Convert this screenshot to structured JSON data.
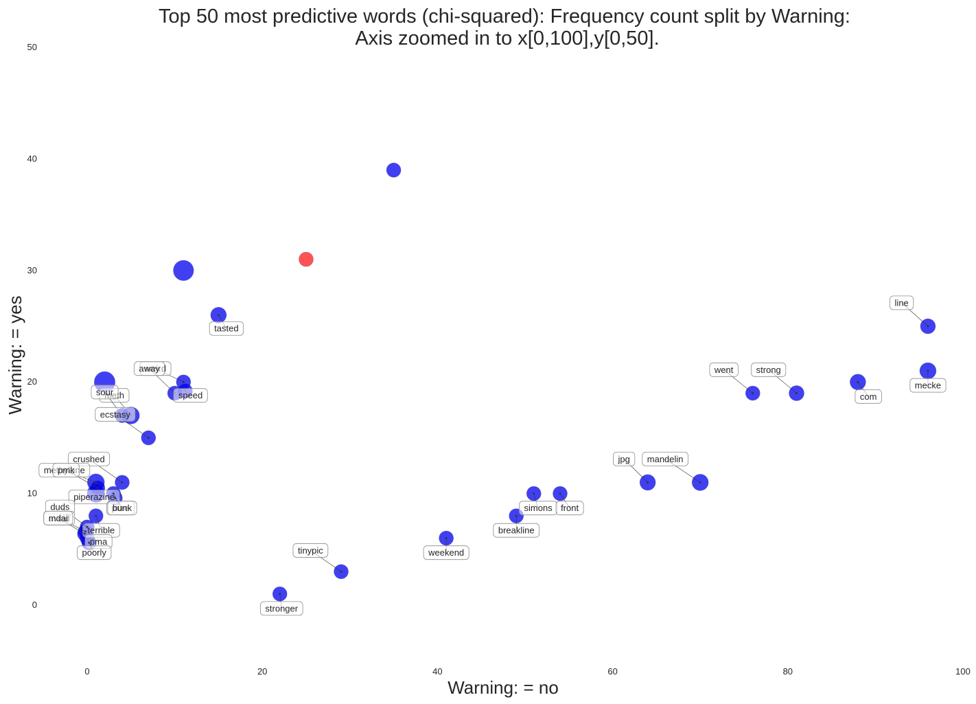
{
  "chart_data": {
    "type": "scatter",
    "title": "Top 50 most predictive words (chi-squared): Frequency count split by Warning:",
    "subtitle": "Axis zoomed in to x[0,100],y[0,50].",
    "xlabel": "Warning: = no",
    "ylabel": "Warning: = yes",
    "xlim": [
      -5,
      100
    ],
    "ylim": [
      -5,
      50
    ],
    "x_ticks": [
      0,
      20,
      40,
      60,
      80,
      100
    ],
    "y_ticks": [
      0,
      10,
      20,
      30,
      40,
      50
    ],
    "grid": false,
    "legend": "none",
    "colors": {
      "primary": "#0000ee",
      "highlight": "#ff1a1a"
    },
    "points": [
      {
        "x": 35,
        "y": 39,
        "size": 1.0,
        "color": "blue"
      },
      {
        "x": 25,
        "y": 31,
        "size": 1.0,
        "color": "red"
      },
      {
        "x": 11,
        "y": 30,
        "size": 2.0,
        "color": "blue"
      },
      {
        "x": 15,
        "y": 26,
        "size": 1.2,
        "color": "blue",
        "label": "tasted",
        "label_x": 15.9,
        "label_y": 24.8
      },
      {
        "x": 2,
        "y": 20,
        "size": 2.1,
        "color": "blue"
      },
      {
        "x": 11,
        "y": 20,
        "size": 1.0,
        "color": "blue",
        "label": "weird",
        "label_x": 7.8,
        "label_y": 21.2
      },
      {
        "x": 10,
        "y": 19,
        "size": 1.0,
        "color": "blue",
        "label": "away",
        "label_x": 7.1,
        "label_y": 21.2
      },
      {
        "x": 11.2,
        "y": 19.2,
        "size": 1.0,
        "color": "blue",
        "label": "speed",
        "label_x": 11.8,
        "label_y": 18.8
      },
      {
        "x": 5,
        "y": 17,
        "size": 1.4,
        "color": "blue",
        "label": "meth",
        "label_x": 3.1,
        "label_y": 18.8
      },
      {
        "x": 4,
        "y": 17,
        "size": 1.0,
        "color": "blue",
        "label": "sour",
        "label_x": 2.0,
        "label_y": 19.1
      },
      {
        "x": 7,
        "y": 15,
        "size": 1.0,
        "color": "blue",
        "label": "ecstasy",
        "label_x": 3.2,
        "label_y": 17.1
      },
      {
        "x": 4,
        "y": 11,
        "size": 1.0,
        "color": "blue",
        "label": "crushed",
        "label_x": 0.2,
        "label_y": 13.1
      },
      {
        "x": 1,
        "y": 11,
        "size": 1.4,
        "color": "blue",
        "label": "methylone",
        "label_x": -2.6,
        "label_y": 12.1
      },
      {
        "x": 1.2,
        "y": 10.5,
        "size": 1.0,
        "color": "blue",
        "label": "pmk",
        "label_x": -2.4,
        "label_y": 12.1
      },
      {
        "x": 1,
        "y": 10,
        "size": 1.5,
        "color": "blue",
        "label": "piperazine",
        "label_x": 0.8,
        "label_y": 9.7
      },
      {
        "x": 3,
        "y": 10,
        "size": 1.0,
        "color": "blue",
        "label": "pure",
        "label_x": 3.8,
        "label_y": 8.7
      },
      {
        "x": 3.2,
        "y": 9.6,
        "size": 1.0,
        "color": "blue",
        "label": "bunk",
        "label_x": 4.0,
        "label_y": 8.7
      },
      {
        "x": 1,
        "y": 8,
        "size": 1.0,
        "color": "blue",
        "label": "terrible",
        "label_x": 1.6,
        "label_y": 6.7
      },
      {
        "x": 0,
        "y": 7,
        "size": 1.0,
        "color": "blue",
        "label": "duds",
        "label_x": -3.1,
        "label_y": 8.8
      },
      {
        "x": -0.2,
        "y": 6.6,
        "size": 1.0,
        "color": "blue",
        "label": "avoid",
        "label_x": -3.2,
        "label_y": 7.8
      },
      {
        "x": -0.3,
        "y": 6.4,
        "size": 1.0,
        "color": "blue",
        "label": "mdai",
        "label_x": -3.3,
        "label_y": 7.8
      },
      {
        "x": 0,
        "y": 6,
        "size": 1.0,
        "color": "blue",
        "label": "pma",
        "label_x": 1.3,
        "label_y": 5.7
      },
      {
        "x": 0.2,
        "y": 5.6,
        "size": 1.0,
        "color": "blue",
        "label": "poorly",
        "label_x": 0.8,
        "label_y": 4.7
      },
      {
        "x": 22,
        "y": 1,
        "size": 1.0,
        "color": "blue",
        "label": "stronger",
        "label_x": 22.2,
        "label_y": -0.3
      },
      {
        "x": 29,
        "y": 3,
        "size": 1.0,
        "color": "blue",
        "label": "tinypic",
        "label_x": 25.5,
        "label_y": 4.9
      },
      {
        "x": 41,
        "y": 6,
        "size": 1.0,
        "color": "blue",
        "label": "weekend",
        "label_x": 41.0,
        "label_y": 4.7
      },
      {
        "x": 49,
        "y": 8,
        "size": 1.0,
        "color": "blue",
        "label": "breakline",
        "label_x": 49.0,
        "label_y": 6.7
      },
      {
        "x": 51,
        "y": 10,
        "size": 1.0,
        "color": "blue",
        "label": "simons",
        "label_x": 51.5,
        "label_y": 8.7
      },
      {
        "x": 54,
        "y": 10,
        "size": 1.0,
        "color": "blue",
        "label": "front",
        "label_x": 55.1,
        "label_y": 8.7
      },
      {
        "x": 64,
        "y": 11,
        "size": 1.2,
        "color": "blue",
        "label": "jpg",
        "label_x": 61.3,
        "label_y": 13.1
      },
      {
        "x": 70,
        "y": 11,
        "size": 1.3,
        "color": "blue",
        "label": "mandelin",
        "label_x": 66.0,
        "label_y": 13.1
      },
      {
        "x": 76,
        "y": 19,
        "size": 1.0,
        "color": "blue",
        "label": "went",
        "label_x": 72.7,
        "label_y": 21.1
      },
      {
        "x": 81,
        "y": 19,
        "size": 1.1,
        "color": "blue",
        "label": "strong",
        "label_x": 77.8,
        "label_y": 21.1
      },
      {
        "x": 88,
        "y": 20,
        "size": 1.2,
        "color": "blue",
        "label": "com",
        "label_x": 89.2,
        "label_y": 18.7
      },
      {
        "x": 96,
        "y": 21,
        "size": 1.3,
        "color": "blue",
        "label": "mecke",
        "label_x": 96.0,
        "label_y": 19.7
      },
      {
        "x": 96,
        "y": 25,
        "size": 1.1,
        "color": "blue",
        "label": "line",
        "label_x": 93.0,
        "label_y": 27.1
      }
    ]
  }
}
